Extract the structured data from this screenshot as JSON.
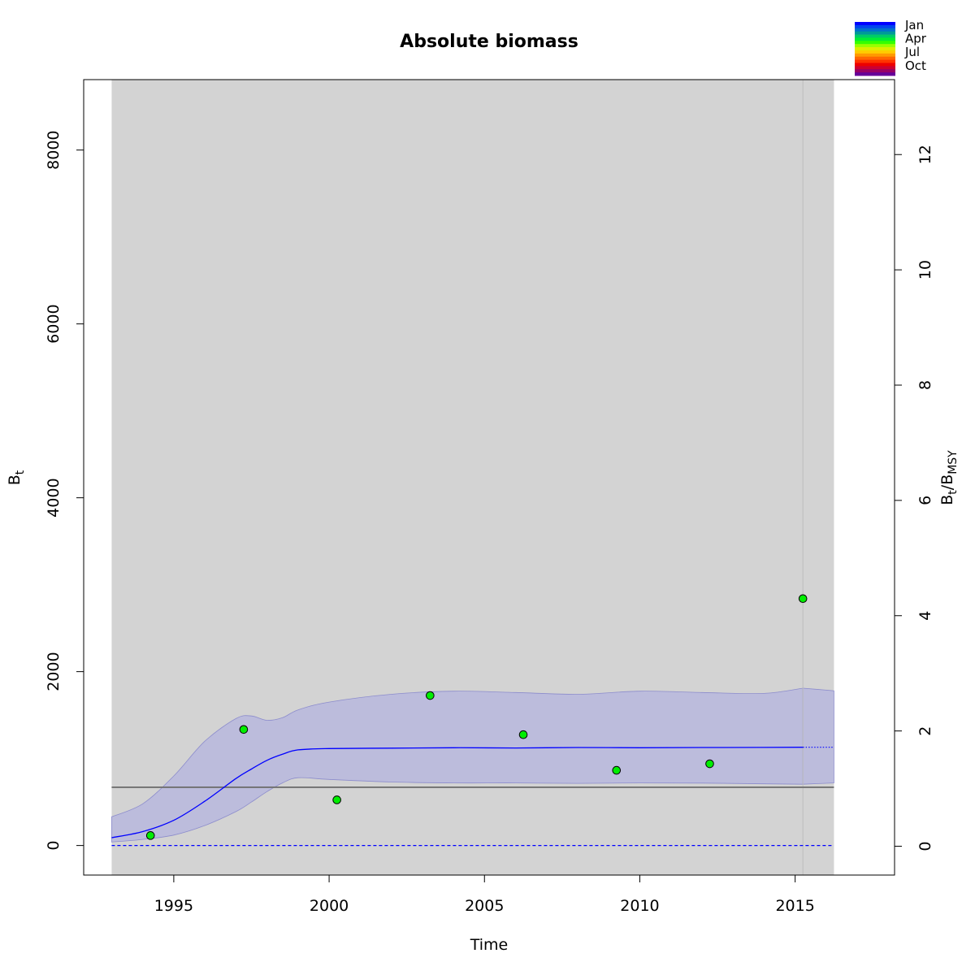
{
  "chart_data": {
    "type": "line",
    "title": "Absolute biomass",
    "xlabel": "Time",
    "ylabel_main": "B",
    "ylabel_sub": "t",
    "y2label_main1": "B",
    "y2label_sub1": "t",
    "y2label_sep": "/B",
    "y2label_sub2": "MSY",
    "xlim": [
      1992.1,
      2018.2
    ],
    "ylim": [
      -340,
      8810
    ],
    "y2lim": [
      -0.5,
      13.3
    ],
    "x_ticks": [
      1995,
      2000,
      2005,
      2010,
      2015
    ],
    "x_tick_labels": [
      "1995",
      "2000",
      "2005",
      "2010",
      "2015"
    ],
    "y_ticks": [
      0,
      2000,
      4000,
      6000,
      8000
    ],
    "y_tick_labels": [
      "0",
      "2000",
      "4000",
      "6000",
      "8000"
    ],
    "y2_ticks": [
      0,
      2,
      4,
      6,
      8,
      10,
      12
    ],
    "y2_tick_labels": [
      "0",
      "2",
      "4",
      "6",
      "8",
      "10",
      "12"
    ],
    "shaded_region": {
      "x_start": 1993.0,
      "x_end": 2016.25
    },
    "last_observation_x": 2015.25,
    "bmsy": 670,
    "zero_line": 0,
    "biomass_estimate": {
      "x": [
        1993.0,
        1994.0,
        1995.0,
        1996.0,
        1997.0,
        1997.5,
        1998.0,
        1998.5,
        1999.0,
        2000.0,
        2002.0,
        2004.0,
        2006.0,
        2008.0,
        2010.0,
        2012.0,
        2014.0,
        2015.25
      ],
      "y": [
        90,
        160,
        290,
        510,
        770,
        880,
        980,
        1050,
        1100,
        1115,
        1120,
        1125,
        1122,
        1127,
        1125,
        1127,
        1128,
        1130
      ],
      "lower": [
        40,
        70,
        120,
        230,
        390,
        500,
        620,
        720,
        780,
        760,
        730,
        720,
        720,
        715,
        720,
        718,
        710,
        705
      ],
      "upper": [
        330,
        480,
        800,
        1200,
        1460,
        1490,
        1440,
        1470,
        1560,
        1650,
        1740,
        1775,
        1760,
        1740,
        1775,
        1760,
        1750,
        1810
      ]
    },
    "forecast": {
      "x": [
        2015.25,
        2016.25
      ],
      "y": [
        1130,
        1130
      ],
      "lower": [
        705,
        720
      ],
      "upper": [
        1810,
        1780
      ]
    },
    "observations": {
      "x": [
        1994.25,
        1997.25,
        2000.25,
        2003.25,
        2006.25,
        2009.25,
        2012.25,
        2015.25
      ],
      "y": [
        115,
        1335,
        525,
        1725,
        1275,
        865,
        940,
        2840
      ]
    },
    "season_legend": {
      "labels": [
        "Jan",
        "Apr",
        "Jul",
        "Oct"
      ],
      "colors": [
        "#0000ff",
        "#0044ee",
        "#0070cc",
        "#009999",
        "#00cc66",
        "#00ee33",
        "#33ff00",
        "#99ff00",
        "#ddee00",
        "#ffcc00",
        "#ff9900",
        "#ff6600",
        "#ff3300",
        "#ee0000",
        "#cc0033",
        "#990066",
        "#660099"
      ]
    },
    "colors": {
      "background": "#d3d3d3",
      "ci_fill": "#bcbcdc",
      "ci_stroke": "#8c8ccc",
      "estimate": "#0000ff",
      "bmsy_line": "#707070",
      "observation_fill": "#00ee00",
      "vertical_line": "#bdbdbd"
    }
  }
}
